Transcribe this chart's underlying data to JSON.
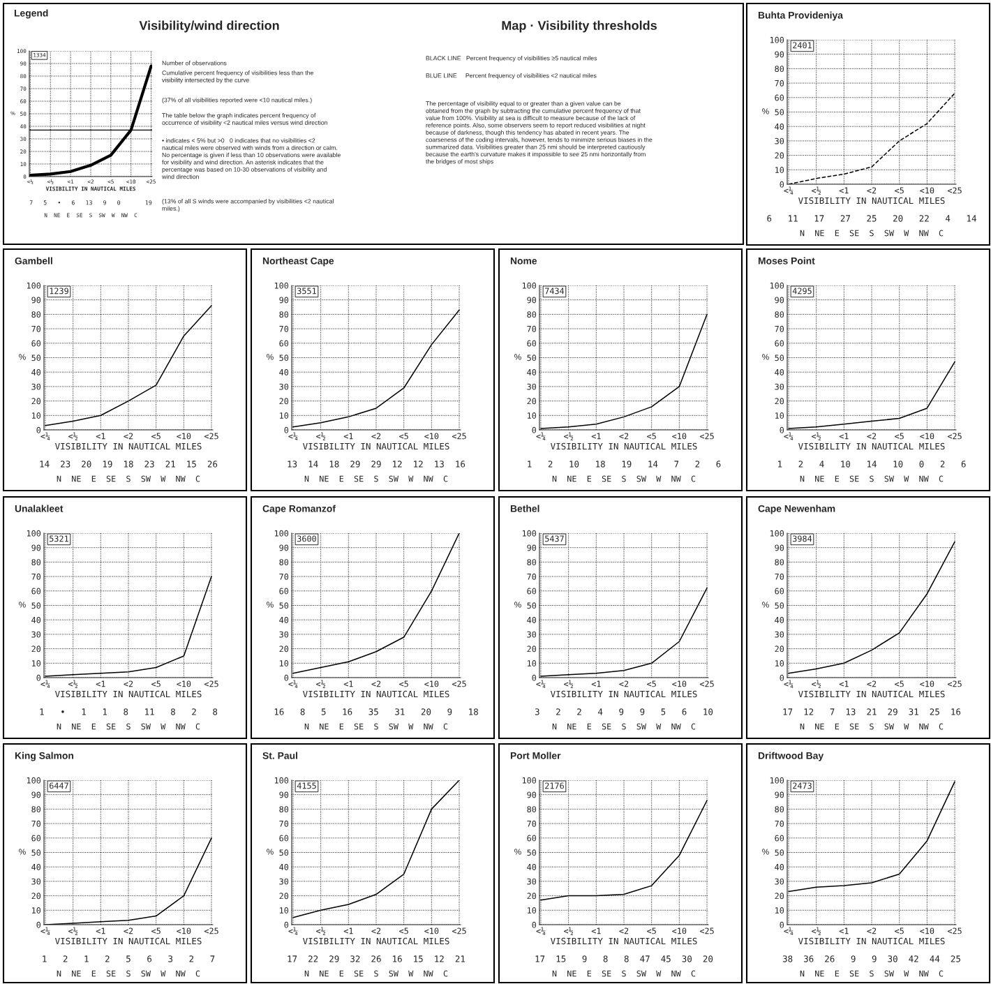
{
  "chart_data": [
    {
      "type": "line",
      "title": "Legend",
      "subtitle": "Visibility/wind direction",
      "ylabel": "%",
      "xlabel": "VISIBILITY IN NAUTICAL MILES",
      "categories": [
        "<¼",
        "<½",
        "<1",
        "<2",
        "<5",
        "<10",
        "<25"
      ],
      "values": [
        1,
        2,
        4,
        9,
        17,
        37,
        88
      ],
      "color": "#000000",
      "ylim": [
        0,
        100
      ],
      "yticks": [
        0,
        10,
        20,
        30,
        40,
        50,
        60,
        70,
        80,
        90,
        100
      ],
      "grid": true,
      "ref_lines": [
        {
          "axis": "y",
          "value": 37
        }
      ],
      "annotations": [
        "1334",
        "7   5   •   6   13   9   0       19",
        "N  NE  E  SE  S  SW  W  NW  C",
        "Number of observations",
        "Cumulative percent frequency of visibilities less than the\nvisibility intersected by the curve",
        "(37% of all visibilities reported were <10 nautical miles.)",
        "The table below the graph indicates percent frequency of\noccurrence of visibility <2 nautical miles versus wind direction",
        "• indicates < 5% but >0   0 indicates that no visibilities <2\nnautical miles were observed with winds from a direction or calm.\nNo percentage is given if less than 10 observations were available\nfor visibility and wind direction. An asterisk indicates that the\npercentage was based on 10-30 observations of visibility and\nwind direction",
        "(13% of all S winds were accompanied by visibilities <2 nautical\nmiles.)"
      ]
    },
    {
      "type": "other",
      "title": "Map · Visibility thresholds",
      "annotations": [
        "BLACK LINE   Percent frequency of visibilities ≥5 nautical miles",
        "BLUE LINE     Percent frequency of visibilities <2 nautical miles",
        "The percentage of visibility equal to or greater than a given value can be\nobtained from the graph by subtracting the cumulative percent frequency of that\nvalue from 100%. Visibility at sea is difficult to measure because of the lack of\nreference points. Also, some observers seem to report reduced visibilities at night\nbecause of darkness, though this tendency has abated in recent years. The\ncoarseness of the coding intervals, however, tends to minimize serious biases in the\nsummarized data. Visibilities greater than 25 nmi should be interpreted cautiously\nbecause the earth's curvature makes it impossible to see 25 nmi horizontally from\nthe bridges of most ships"
      ]
    },
    {
      "type": "line",
      "title": "Buhta Provideniya",
      "ylabel": "%",
      "xlabel": "VISIBILITY IN NAUTICAL MILES",
      "categories": [
        "<¼",
        "<½",
        "<1",
        "<2",
        "<5",
        "<10",
        "<25"
      ],
      "values": [
        0,
        4,
        7,
        12,
        30,
        42,
        63
      ],
      "color": "#000000",
      "line_style": "dashed",
      "ylim": [
        0,
        100
      ],
      "yticks": [
        0,
        10,
        20,
        30,
        40,
        50,
        60,
        70,
        80,
        90,
        100
      ],
      "grid": true,
      "annotations": [
        "2401",
        "6   11   17   27   25   20   22   4   14",
        "N  NE  E  SE  S  SW  W  NW  C"
      ]
    },
    {
      "type": "line",
      "title": "Gambell",
      "ylabel": "%",
      "xlabel": "VISIBILITY IN NAUTICAL MILES",
      "categories": [
        "<¼",
        "<½",
        "<1",
        "<2",
        "<5",
        "<10",
        "<25"
      ],
      "values": [
        3,
        6,
        10,
        20,
        31,
        65,
        86
      ],
      "color": "#000000",
      "ylim": [
        0,
        100
      ],
      "yticks": [
        0,
        10,
        20,
        30,
        40,
        50,
        60,
        70,
        80,
        90,
        100
      ],
      "grid": true,
      "annotations": [
        "1239",
        "14  23  20  19  18  23  21  15  26",
        "N  NE  E  SE  S  SW  W  NW  C"
      ]
    },
    {
      "type": "line",
      "title": "Northeast Cape",
      "ylabel": "%",
      "xlabel": "VISIBILITY IN NAUTICAL MILES",
      "categories": [
        "<¼",
        "<½",
        "<1",
        "<2",
        "<5",
        "<10",
        "<25"
      ],
      "values": [
        2,
        5,
        9,
        15,
        29,
        59,
        83
      ],
      "color": "#000000",
      "ylim": [
        0,
        100
      ],
      "yticks": [
        0,
        10,
        20,
        30,
        40,
        50,
        60,
        70,
        80,
        90,
        100
      ],
      "grid": true,
      "annotations": [
        "3551",
        "13  14  18  29  29  12  12  13  16",
        "N  NE  E  SE  S  SW  W  NW  C"
      ]
    },
    {
      "type": "line",
      "title": "Nome",
      "ylabel": "%",
      "xlabel": "VISIBILITY IN NAUTICAL MILES",
      "categories": [
        "<¼",
        "<½",
        "<1",
        "<2",
        "<5",
        "<10",
        "<25"
      ],
      "values": [
        1,
        2,
        4,
        9,
        16,
        30,
        80
      ],
      "color": "#000000",
      "ylim": [
        0,
        100
      ],
      "yticks": [
        0,
        10,
        20,
        30,
        40,
        50,
        60,
        70,
        80,
        90,
        100
      ],
      "grid": true,
      "annotations": [
        "7434",
        "1   2   10   18   19   14   7   2   6",
        "N  NE  E  SE  S  SW  W  NW  C"
      ]
    },
    {
      "type": "line",
      "title": "Moses Point",
      "ylabel": "%",
      "xlabel": "VISIBILITY IN NAUTICAL MILES",
      "categories": [
        "<¼",
        "<½",
        "<1",
        "<2",
        "<5",
        "<10",
        "<25"
      ],
      "values": [
        1,
        2,
        4,
        6,
        8,
        15,
        47
      ],
      "color": "#000000",
      "ylim": [
        0,
        100
      ],
      "yticks": [
        0,
        10,
        20,
        30,
        40,
        50,
        60,
        70,
        80,
        90,
        100
      ],
      "grid": true,
      "annotations": [
        "4295",
        "1   2   4   10   14   10   0   2   6",
        "N  NE  E  SE  S  SW  W  NW  C"
      ]
    },
    {
      "type": "line",
      "title": "Unalakleet",
      "ylabel": "%",
      "xlabel": "VISIBILITY IN NAUTICAL MILES",
      "categories": [
        "<¼",
        "<½",
        "<1",
        "<2",
        "<5",
        "<10",
        "<25"
      ],
      "values": [
        1,
        2,
        3,
        4,
        7,
        15,
        70
      ],
      "color": "#000000",
      "ylim": [
        0,
        100
      ],
      "yticks": [
        0,
        10,
        20,
        30,
        40,
        50,
        60,
        70,
        80,
        90,
        100
      ],
      "grid": true,
      "annotations": [
        "5321",
        "1   •   1   1   8   11   8   2   8",
        "N  NE  E  SE  S  SW  W  NW  C"
      ]
    },
    {
      "type": "line",
      "title": "Cape Romanzof",
      "ylabel": "%",
      "xlabel": "VISIBILITY IN NAUTICAL MILES",
      "categories": [
        "<¼",
        "<½",
        "<1",
        "<2",
        "<5",
        "<10",
        "<25"
      ],
      "values": [
        3,
        7,
        11,
        18,
        28,
        60,
        100
      ],
      "color": "#000000",
      "ylim": [
        0,
        100
      ],
      "yticks": [
        0,
        10,
        20,
        30,
        40,
        50,
        60,
        70,
        80,
        90,
        100
      ],
      "grid": true,
      "annotations": [
        "3600",
        "16   8   5   16   35   31   20   9   18",
        "N  NE  E  SE  S  SW  W  NW  C"
      ]
    },
    {
      "type": "line",
      "title": "Bethel",
      "ylabel": "%",
      "xlabel": "VISIBILITY IN NAUTICAL MILES",
      "categories": [
        "<¼",
        "<½",
        "<1",
        "<2",
        "<5",
        "<10",
        "<25"
      ],
      "values": [
        1,
        2,
        3,
        5,
        10,
        25,
        62
      ],
      "color": "#000000",
      "ylim": [
        0,
        100
      ],
      "yticks": [
        0,
        10,
        20,
        30,
        40,
        50,
        60,
        70,
        80,
        90,
        100
      ],
      "grid": true,
      "annotations": [
        "5437",
        "3   2   2   4   9   9   5   6   10",
        "N  NE  E  SE  S  SW  W  NW  C"
      ]
    },
    {
      "type": "line",
      "title": "Cape Newenham",
      "ylabel": "%",
      "xlabel": "VISIBILITY IN NAUTICAL MILES",
      "categories": [
        "<¼",
        "<½",
        "<1",
        "<2",
        "<5",
        "<10",
        "<25"
      ],
      "values": [
        3,
        6,
        10,
        19,
        31,
        58,
        94
      ],
      "color": "#000000",
      "ylim": [
        0,
        100
      ],
      "yticks": [
        0,
        10,
        20,
        30,
        40,
        50,
        60,
        70,
        80,
        90,
        100
      ],
      "grid": true,
      "annotations": [
        "3984",
        "17  12   7  13  21  29  31  25  16",
        "N  NE  E  SE  S  SW  W  NW  C"
      ]
    },
    {
      "type": "line",
      "title": "King Salmon",
      "ylabel": "%",
      "xlabel": "VISIBILITY IN NAUTICAL MILES",
      "categories": [
        "<¼",
        "<½",
        "<1",
        "<2",
        "<5",
        "<10",
        "<25"
      ],
      "values": [
        0,
        1,
        2,
        3,
        6,
        20,
        60
      ],
      "color": "#000000",
      "ylim": [
        0,
        100
      ],
      "yticks": [
        0,
        10,
        20,
        30,
        40,
        50,
        60,
        70,
        80,
        90,
        100
      ],
      "grid": true,
      "annotations": [
        "6447",
        "1   2   1   2   5   6   3   2   7",
        "N  NE  E  SE  S  SW  W  NW  C"
      ]
    },
    {
      "type": "line",
      "title": "St. Paul",
      "ylabel": "%",
      "xlabel": "VISIBILITY IN NAUTICAL MILES",
      "categories": [
        "<¼",
        "<½",
        "<1",
        "<2",
        "<5",
        "<10",
        "<25"
      ],
      "values": [
        5,
        10,
        14,
        21,
        35,
        80,
        100
      ],
      "color": "#000000",
      "ylim": [
        0,
        100
      ],
      "yticks": [
        0,
        10,
        20,
        30,
        40,
        50,
        60,
        70,
        80,
        90,
        100
      ],
      "grid": true,
      "annotations": [
        "4155",
        "17  22  29  32  26  16  15  12  21",
        "N  NE  E  SE  S  SW  W  NW  C"
      ]
    },
    {
      "type": "line",
      "title": "Port Moller",
      "ylabel": "%",
      "xlabel": "VISIBILITY IN NAUTICAL MILES",
      "categories": [
        "<¼",
        "<½",
        "<1",
        "<2",
        "<5",
        "<10",
        "<25"
      ],
      "values": [
        17,
        20,
        20,
        21,
        27,
        48,
        86
      ],
      "color": "#000000",
      "ylim": [
        0,
        100
      ],
      "yticks": [
        0,
        10,
        20,
        30,
        40,
        50,
        60,
        70,
        80,
        90,
        100
      ],
      "grid": true,
      "annotations": [
        "2176",
        "17  15   9   8   8  47  45  30  20",
        "N  NE  E  SE  S  SW  W  NW  C"
      ]
    },
    {
      "type": "line",
      "title": "Driftwood Bay",
      "ylabel": "%",
      "xlabel": "VISIBILITY IN NAUTICAL MILES",
      "categories": [
        "<¼",
        "<½",
        "<1",
        "<2",
        "<5",
        "<10",
        "<25"
      ],
      "values": [
        23,
        26,
        27,
        29,
        35,
        58,
        99
      ],
      "color": "#000000",
      "ylim": [
        0,
        100
      ],
      "yticks": [
        0,
        10,
        20,
        30,
        40,
        50,
        60,
        70,
        80,
        90,
        100
      ],
      "grid": true,
      "annotations": [
        "2473",
        "38  36  26   9   9  30  42  44  25",
        "N  NE  E  SE  S  SW  W  NW  C"
      ]
    }
  ]
}
